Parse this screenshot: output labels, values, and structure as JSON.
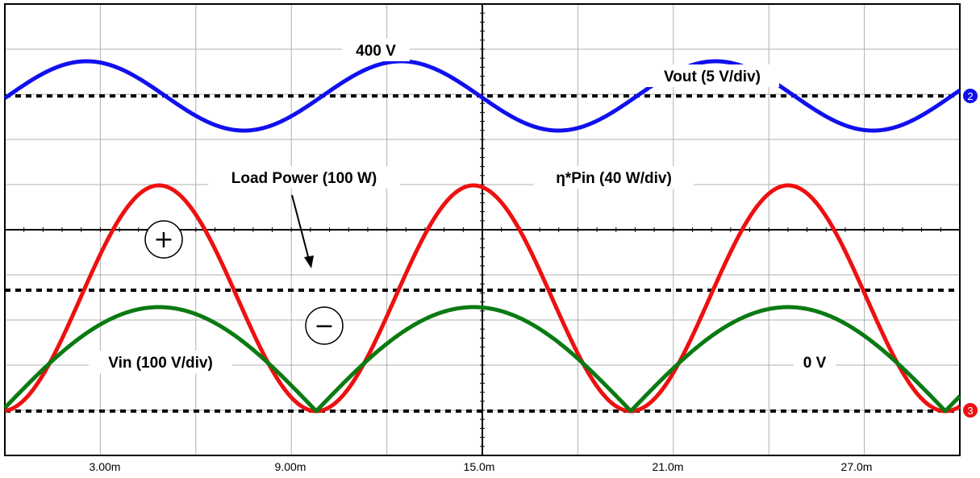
{
  "chart_data": {
    "type": "line",
    "x_ticks": [
      "3.00m",
      "9.00m",
      "15.0m",
      "21.0m",
      "27.0m"
    ],
    "labels": {
      "v400": "400 V",
      "vout": "Vout (5 V/div)",
      "load_power": "Load Power (100 W)",
      "eta_pin": "η*Pin (40 W/div)",
      "vin": "Vin (100 V/div)",
      "zero": "0 V"
    },
    "region_symbols": {
      "plus": "+",
      "minus": "−"
    },
    "channel_markers": {
      "vout": "2",
      "power": "3"
    },
    "series": [
      {
        "key": "vout",
        "color": "#1010ee"
      },
      {
        "key": "power",
        "color": "#ee1010"
      },
      {
        "key": "vin",
        "color": "#0a7a12"
      }
    ],
    "colors": {
      "grid": "#b0b0b0",
      "frame": "#000000",
      "vout": "#1010ee",
      "power": "#ee1010",
      "vin": "#0a7a12"
    }
  }
}
